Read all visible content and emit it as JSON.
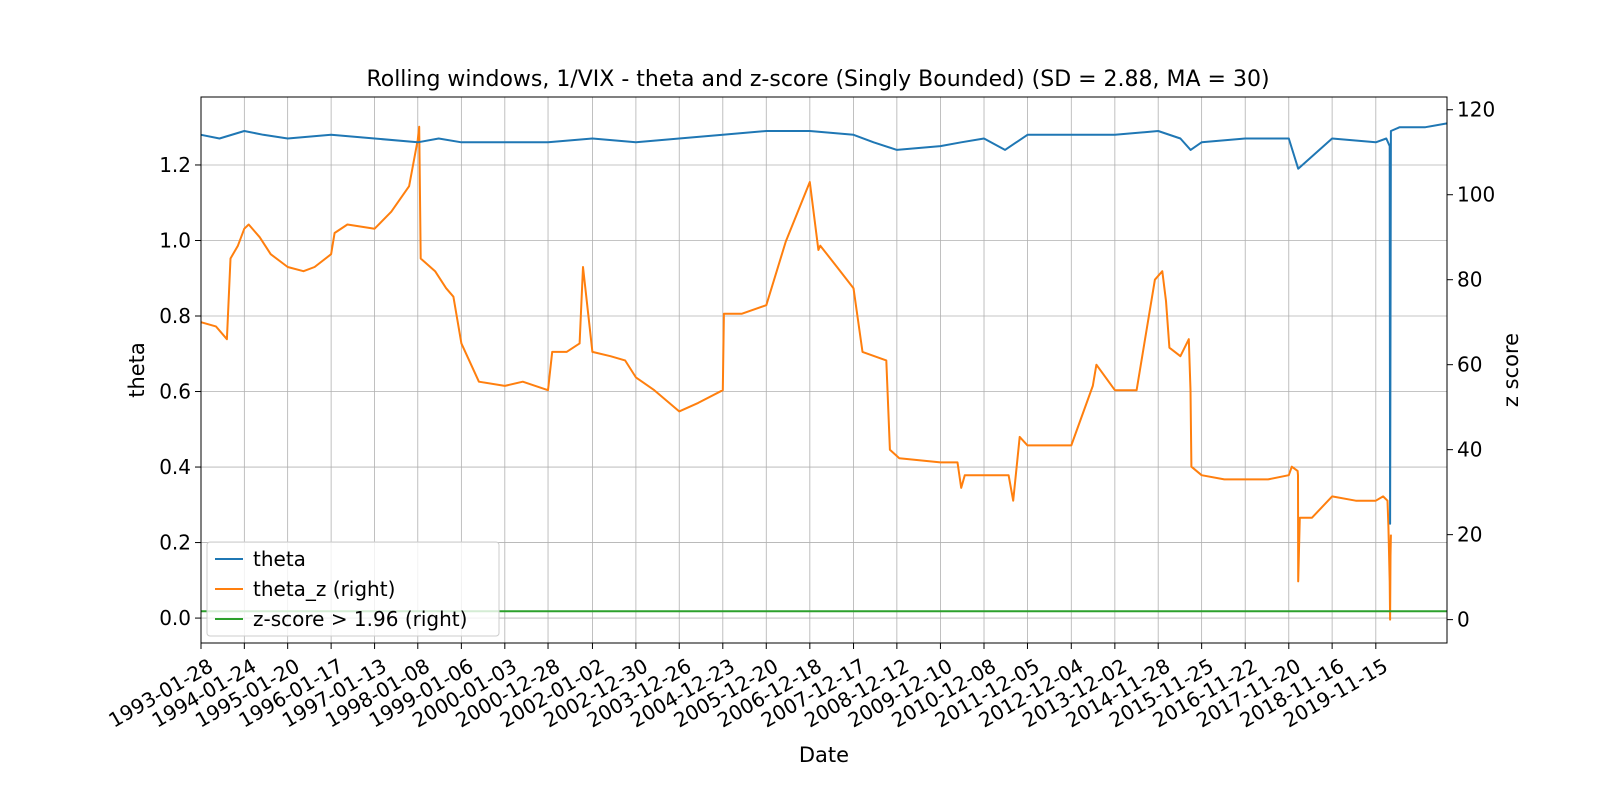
{
  "chart_data": {
    "type": "line",
    "title": "Rolling windows, 1/VIX - theta and z-score (Singly Bounded) (SD = 2.88, MA = 30)",
    "xlabel": "Date",
    "ylabel": "theta",
    "y2label": "z score",
    "grid": true,
    "legend_position": "lower-left",
    "x_range": [
      "1993-01-28",
      "2021-06-30"
    ],
    "ylim": [
      -0.066,
      1.38
    ],
    "y2lim": [
      -5.5,
      123
    ],
    "x_ticks": [
      "1993-01-28",
      "1994-01-24",
      "1995-01-20",
      "1996-01-17",
      "1997-01-13",
      "1998-01-08",
      "1999-01-06",
      "2000-01-03",
      "2000-12-28",
      "2002-01-02",
      "2002-12-30",
      "2003-12-26",
      "2004-12-23",
      "2005-12-20",
      "2006-12-18",
      "2007-12-17",
      "2008-12-12",
      "2009-12-10",
      "2010-12-08",
      "2011-12-05",
      "2012-12-04",
      "2013-12-02",
      "2014-11-28",
      "2015-11-25",
      "2016-11-22",
      "2017-11-20",
      "2018-11-16",
      "2019-11-15"
    ],
    "y_ticks": [
      "0.0",
      "0.2",
      "0.4",
      "0.6",
      "0.8",
      "1.0",
      "1.2"
    ],
    "y2_ticks": [
      "0",
      "20",
      "40",
      "60",
      "80",
      "100",
      "120"
    ],
    "series": [
      {
        "name": "theta",
        "axis": "left",
        "color": "#1f77b4",
        "x": [
          "1993-01-28",
          "1993-07-01",
          "1994-01-24",
          "1994-07-01",
          "1995-01-20",
          "1996-01-17",
          "1997-01-13",
          "1998-01-08",
          "1998-07-01",
          "1999-01-06",
          "2000-01-03",
          "2000-12-28",
          "2002-01-02",
          "2002-12-30",
          "2003-12-26",
          "2004-12-23",
          "2005-12-20",
          "2006-12-18",
          "2007-12-17",
          "2008-06-01",
          "2008-12-12",
          "2009-12-10",
          "2010-06-01",
          "2010-12-08",
          "2011-06-01",
          "2011-12-05",
          "2012-12-04",
          "2013-12-02",
          "2014-11-28",
          "2015-06-01",
          "2015-08-25",
          "2015-11-25",
          "2016-11-22",
          "2017-11-20",
          "2018-02-06",
          "2018-11-16",
          "2019-11-15",
          "2020-02-10",
          "2020-03-10",
          "2020-03-13",
          "2020-03-20",
          "2020-06-01",
          "2021-01-01",
          "2021-06-30"
        ],
        "values": [
          1.28,
          1.27,
          1.29,
          1.28,
          1.27,
          1.28,
          1.27,
          1.26,
          1.27,
          1.26,
          1.26,
          1.26,
          1.27,
          1.26,
          1.27,
          1.28,
          1.29,
          1.29,
          1.28,
          1.26,
          1.24,
          1.25,
          1.26,
          1.27,
          1.24,
          1.28,
          1.28,
          1.28,
          1.29,
          1.27,
          1.24,
          1.26,
          1.27,
          1.27,
          1.19,
          1.27,
          1.26,
          1.27,
          1.25,
          0.25,
          1.29,
          1.3,
          1.3,
          1.31
        ]
      },
      {
        "name": "theta_z (right)",
        "axis": "right",
        "color": "#ff7f0e",
        "x": [
          "1993-01-28",
          "1993-06-01",
          "1993-09-01",
          "1993-10-01",
          "1993-12-01",
          "1994-01-24",
          "1994-03-01",
          "1994-06-01",
          "1994-09-01",
          "1995-01-20",
          "1995-06-01",
          "1995-09-01",
          "1996-01-17",
          "1996-02-15",
          "1996-06-01",
          "1997-01-13",
          "1997-06-01",
          "1997-10-28",
          "1998-01-08",
          "1998-01-20",
          "1998-02-01",
          "1998-06-01",
          "1998-09-01",
          "1998-11-01",
          "1999-01-06",
          "1999-06-01",
          "2000-01-03",
          "2000-06-01",
          "2000-12-28",
          "2001-02-01",
          "2001-06-01",
          "2001-09-17",
          "2001-10-15",
          "2002-01-02",
          "2002-06-01",
          "2002-10-01",
          "2002-12-30",
          "2003-06-01",
          "2003-12-26",
          "2004-06-01",
          "2004-12-23",
          "2005-01-01",
          "2005-06-01",
          "2005-12-20",
          "2006-06-01",
          "2006-12-18",
          "2007-02-27",
          "2007-03-15",
          "2007-08-01",
          "2007-12-17",
          "2008-03-01",
          "2008-09-15",
          "2008-10-15",
          "2009-01-01",
          "2009-12-10",
          "2010-05-01",
          "2010-06-01",
          "2010-07-01",
          "2010-12-08",
          "2011-07-01",
          "2011-08-08",
          "2011-10-01",
          "2011-12-05",
          "2012-06-01",
          "2012-12-04",
          "2013-06-01",
          "2013-07-01",
          "2013-12-02",
          "2014-06-01",
          "2014-11-01",
          "2015-01-01",
          "2015-02-01",
          "2015-03-01",
          "2015-06-01",
          "2015-08-10",
          "2015-08-24",
          "2015-09-01",
          "2015-11-25",
          "2016-06-01",
          "2016-11-22",
          "2017-06-01",
          "2017-11-20",
          "2017-12-15",
          "2018-02-01",
          "2018-02-05",
          "2018-02-06",
          "2018-02-20",
          "2018-06-01",
          "2018-11-16",
          "2019-06-01",
          "2019-11-15",
          "2020-01-15",
          "2020-02-20",
          "2020-02-28",
          "2020-03-10",
          "2020-03-13",
          "2020-03-16",
          "2020-03-20"
        ],
        "values": [
          70,
          69,
          66,
          85,
          88,
          92,
          93,
          90,
          86,
          83,
          82,
          83,
          86,
          91,
          93,
          92,
          96,
          102,
          113,
          116,
          85,
          82,
          78,
          76,
          65,
          56,
          55,
          56,
          54,
          63,
          63,
          65,
          83,
          63,
          62,
          61,
          57,
          54,
          49,
          51,
          54,
          72,
          72,
          74,
          89,
          103,
          87,
          88,
          83,
          78,
          63,
          61,
          40,
          38,
          37,
          37,
          31,
          34,
          34,
          34,
          28,
          43,
          41,
          41,
          41,
          55,
          60,
          54,
          54,
          80,
          82,
          75,
          64,
          62,
          66,
          54,
          36,
          34,
          33,
          33,
          33,
          34,
          36,
          35,
          34,
          9,
          24,
          24,
          29,
          28,
          28,
          29,
          28,
          22,
          9,
          0,
          15,
          20
        ]
      },
      {
        "name": "z-score > 1.96 (right)",
        "axis": "right",
        "color": "#2ca02c",
        "x": [
          "1993-01-28",
          "2021-06-30"
        ],
        "values": [
          1.96,
          1.96
        ]
      }
    ]
  }
}
